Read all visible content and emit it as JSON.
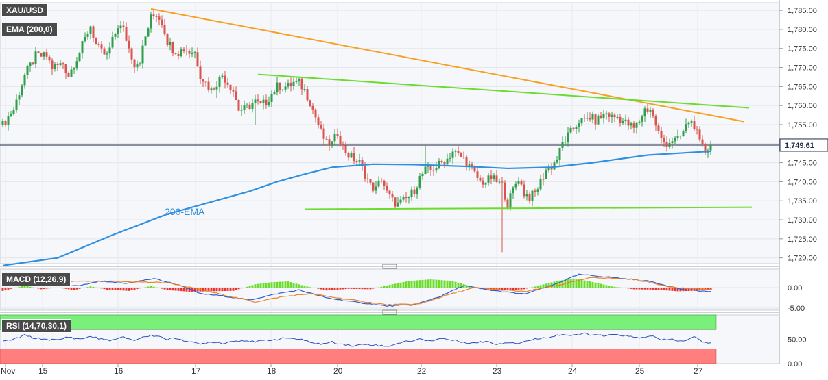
{
  "symbol": "XAU/USD",
  "ema_label": "EMA (200,0)",
  "ema_annotation": "200-EMA",
  "macd_label": "MACD (12,26,9)",
  "rsi_label": "RSI (14,70,30,1)",
  "colors": {
    "bull": "#2e9e4a",
    "bear": "#d9534f",
    "ema": "#2f8fe0",
    "trend_orange": "#f7a022",
    "trend_green": "#6cdc2c",
    "rsi_over": "#78f07a",
    "rsi_under": "#ff7f7f",
    "macd_line": "#2a5bd7",
    "signal_line": "#f0821e"
  },
  "chart_data": [
    {
      "type": "candlestick",
      "title": "XAU/USD",
      "ylim": [
        1718.5,
        1787
      ],
      "y_ticks": [
        "1,720.00",
        "1,725.00",
        "1,730.00",
        "1,735.00",
        "1,740.00",
        "1,745.00",
        "1,750.00",
        "1,755.00",
        "1,760.00",
        "1,765.00",
        "1,770.00",
        "1,775.00",
        "1,780.00",
        "1,785.00"
      ],
      "x_ticks": [
        "Nov",
        "15",
        "16",
        "17",
        "18",
        "20",
        "22",
        "23",
        "24",
        "25",
        "27"
      ],
      "last_price": "1,749.61",
      "anchors": [
        [
          0,
          1755
        ],
        [
          4,
          1759
        ],
        [
          8,
          1768
        ],
        [
          12,
          1773
        ],
        [
          16,
          1773
        ],
        [
          18,
          1770
        ],
        [
          22,
          1771
        ],
        [
          24,
          1768
        ],
        [
          28,
          1774
        ],
        [
          32,
          1781
        ],
        [
          34,
          1776
        ],
        [
          36,
          1774
        ],
        [
          38,
          1773
        ],
        [
          40,
          1777
        ],
        [
          42,
          1781
        ],
        [
          44,
          1780
        ],
        [
          46,
          1775
        ],
        [
          48,
          1771
        ],
        [
          50,
          1772
        ],
        [
          52,
          1778
        ],
        [
          54,
          1783
        ],
        [
          56,
          1784
        ],
        [
          58,
          1782
        ],
        [
          60,
          1777
        ],
        [
          62,
          1775
        ],
        [
          64,
          1774
        ],
        [
          66,
          1775
        ],
        [
          68,
          1774
        ],
        [
          70,
          1774
        ],
        [
          72,
          1768
        ],
        [
          74,
          1766
        ],
        [
          76,
          1764
        ],
        [
          78,
          1766
        ],
        [
          80,
          1768
        ],
        [
          82,
          1766
        ],
        [
          84,
          1764
        ],
        [
          86,
          1759
        ],
        [
          88,
          1759
        ],
        [
          90,
          1760
        ],
        [
          92,
          1761
        ],
        [
          94,
          1760
        ],
        [
          96,
          1761
        ],
        [
          98,
          1763
        ],
        [
          100,
          1765
        ],
        [
          102,
          1765
        ],
        [
          104,
          1765
        ],
        [
          106,
          1766
        ],
        [
          108,
          1766
        ],
        [
          110,
          1764
        ],
        [
          112,
          1761
        ],
        [
          114,
          1757
        ],
        [
          116,
          1753
        ],
        [
          118,
          1750
        ],
        [
          120,
          1750
        ],
        [
          122,
          1753
        ],
        [
          124,
          1749
        ],
        [
          126,
          1747
        ],
        [
          128,
          1746
        ],
        [
          130,
          1745
        ],
        [
          132,
          1742
        ],
        [
          134,
          1739
        ],
        [
          136,
          1738
        ],
        [
          138,
          1741
        ],
        [
          140,
          1737
        ],
        [
          142,
          1735
        ],
        [
          144,
          1734
        ],
        [
          146,
          1735
        ],
        [
          148,
          1736
        ],
        [
          150,
          1738
        ],
        [
          152,
          1741
        ],
        [
          154,
          1743
        ],
        [
          156,
          1743
        ],
        [
          158,
          1744
        ],
        [
          160,
          1745
        ],
        [
          162,
          1746
        ],
        [
          164,
          1748
        ],
        [
          166,
          1747
        ],
        [
          168,
          1746
        ],
        [
          170,
          1744
        ],
        [
          172,
          1742
        ],
        [
          174,
          1740
        ],
        [
          176,
          1740
        ],
        [
          178,
          1741
        ],
        [
          180,
          1740
        ],
        [
          182,
          1739
        ],
        [
          184,
          1734
        ],
        [
          186,
          1738
        ],
        [
          188,
          1741
        ],
        [
          190,
          1737
        ],
        [
          192,
          1736
        ],
        [
          194,
          1737
        ],
        [
          196,
          1740
        ],
        [
          198,
          1743
        ],
        [
          200,
          1744
        ],
        [
          202,
          1746
        ],
        [
          204,
          1750
        ],
        [
          206,
          1752
        ],
        [
          208,
          1754
        ],
        [
          210,
          1756
        ],
        [
          212,
          1756
        ],
        [
          214,
          1757
        ],
        [
          216,
          1756
        ],
        [
          218,
          1757
        ],
        [
          220,
          1758
        ],
        [
          222,
          1757
        ],
        [
          224,
          1757
        ],
        [
          226,
          1756
        ],
        [
          228,
          1755
        ],
        [
          230,
          1754
        ],
        [
          232,
          1756
        ],
        [
          234,
          1759
        ],
        [
          236,
          1759
        ],
        [
          238,
          1755
        ],
        [
          240,
          1751
        ],
        [
          242,
          1750
        ],
        [
          244,
          1751
        ],
        [
          246,
          1751
        ],
        [
          248,
          1753
        ],
        [
          250,
          1756
        ],
        [
          252,
          1755
        ],
        [
          254,
          1750
        ],
        [
          256,
          1748
        ],
        [
          258,
          1750
        ]
      ],
      "spikes": [
        [
          182,
          1721.5
        ],
        [
          154,
          1749.5
        ],
        [
          78,
          1762
        ],
        [
          92,
          1755
        ]
      ],
      "ema": [
        [
          0,
          1718
        ],
        [
          20,
          1720
        ],
        [
          40,
          1726
        ],
        [
          60,
          1731.5
        ],
        [
          80,
          1735.5
        ],
        [
          90,
          1737.5
        ],
        [
          100,
          1740
        ],
        [
          110,
          1742
        ],
        [
          120,
          1743.8
        ],
        [
          135,
          1744.6
        ],
        [
          150,
          1744.5
        ],
        [
          170,
          1744
        ],
        [
          184,
          1743.5
        ],
        [
          200,
          1743.8
        ],
        [
          215,
          1745
        ],
        [
          235,
          1747
        ],
        [
          258,
          1748
        ]
      ],
      "trendlines": [
        {
          "color": "orange",
          "from": [
            54,
            1785.4
          ],
          "to": [
            270,
            1755.8
          ]
        },
        {
          "color": "green",
          "from": [
            93,
            1768.2
          ],
          "to": [
            272,
            1759.4
          ]
        },
        {
          "color": "green",
          "from": [
            110,
            1732.8
          ],
          "to": [
            273,
            1733.3
          ]
        }
      ]
    },
    {
      "type": "macd",
      "title": "MACD (12,26,9)",
      "y_ticks": [
        "0.00",
        "-5.00"
      ],
      "ylim": [
        -5.5,
        4.5
      ],
      "macd": [
        [
          0,
          1
        ],
        [
          10,
          1.5
        ],
        [
          20,
          0.6
        ],
        [
          28,
          0.4
        ],
        [
          35,
          1.5
        ],
        [
          45,
          1
        ],
        [
          55,
          2.2
        ],
        [
          65,
          0.5
        ],
        [
          72,
          -1.5
        ],
        [
          80,
          -2
        ],
        [
          90,
          -3
        ],
        [
          100,
          -1.5
        ],
        [
          108,
          -0.6
        ],
        [
          118,
          -2.5
        ],
        [
          128,
          -3.5
        ],
        [
          140,
          -4.5
        ],
        [
          150,
          -4.2
        ],
        [
          160,
          -2
        ],
        [
          168,
          0.5
        ],
        [
          176,
          -0.5
        ],
        [
          190,
          -1.6
        ],
        [
          200,
          0.5
        ],
        [
          210,
          3.2
        ],
        [
          222,
          2.5
        ],
        [
          236,
          1.5
        ],
        [
          248,
          -0.5
        ],
        [
          258,
          -1
        ]
      ],
      "signal": [
        [
          0,
          1
        ],
        [
          20,
          1.5
        ],
        [
          40,
          1.5
        ],
        [
          60,
          1.2
        ],
        [
          72,
          -0.5
        ],
        [
          82,
          -2
        ],
        [
          92,
          -3.5
        ],
        [
          102,
          -2.2
        ],
        [
          112,
          -1.5
        ],
        [
          125,
          -2.8
        ],
        [
          140,
          -4.2
        ],
        [
          152,
          -4
        ],
        [
          162,
          -1.8
        ],
        [
          172,
          0
        ],
        [
          190,
          -1
        ],
        [
          202,
          0.5
        ],
        [
          215,
          2.5
        ],
        [
          230,
          2
        ],
        [
          245,
          0
        ],
        [
          258,
          -0.5
        ]
      ],
      "histogram": [
        [
          0,
          -0.8
        ],
        [
          8,
          0.5
        ],
        [
          14,
          -0.4
        ],
        [
          20,
          0
        ],
        [
          26,
          -0.6
        ],
        [
          32,
          0.3
        ],
        [
          38,
          -0.5
        ],
        [
          46,
          -0.8
        ],
        [
          54,
          0.4
        ],
        [
          60,
          -0.6
        ],
        [
          68,
          -1
        ],
        [
          76,
          -0.9
        ],
        [
          84,
          -0.8
        ],
        [
          92,
          0.8
        ],
        [
          98,
          1.3
        ],
        [
          104,
          1.5
        ],
        [
          110,
          0.4
        ],
        [
          118,
          -0.7
        ],
        [
          126,
          -0.3
        ],
        [
          134,
          -0.4
        ],
        [
          142,
          0.8
        ],
        [
          148,
          1.6
        ],
        [
          156,
          2
        ],
        [
          164,
          1.6
        ],
        [
          170,
          0.4
        ],
        [
          176,
          -0.4
        ],
        [
          184,
          -0.6
        ],
        [
          190,
          -0.4
        ],
        [
          196,
          0.6
        ],
        [
          202,
          1.6
        ],
        [
          208,
          2.2
        ],
        [
          214,
          1.5
        ],
        [
          222,
          0.3
        ],
        [
          230,
          -0.4
        ],
        [
          238,
          -0.5
        ],
        [
          246,
          -0.9
        ],
        [
          252,
          -0.8
        ],
        [
          258,
          -0.5
        ]
      ]
    },
    {
      "type": "rsi",
      "title": "RSI (14,70,30,1)",
      "y_ticks": [
        "50.00",
        "0.00"
      ],
      "ylim": [
        0,
        100
      ],
      "overbought": 70,
      "oversold": 30,
      "rsi": [
        [
          0,
          45
        ],
        [
          4,
          50
        ],
        [
          8,
          58
        ],
        [
          12,
          52
        ],
        [
          16,
          50
        ],
        [
          20,
          48
        ],
        [
          24,
          55
        ],
        [
          28,
          50
        ],
        [
          32,
          56
        ],
        [
          36,
          50
        ],
        [
          40,
          48
        ],
        [
          44,
          54
        ],
        [
          48,
          48
        ],
        [
          52,
          56
        ],
        [
          56,
          58
        ],
        [
          60,
          50
        ],
        [
          64,
          52
        ],
        [
          68,
          44
        ],
        [
          72,
          40
        ],
        [
          76,
          45
        ],
        [
          80,
          42
        ],
        [
          84,
          46
        ],
        [
          88,
          48
        ],
        [
          92,
          44
        ],
        [
          96,
          48
        ],
        [
          100,
          50
        ],
        [
          104,
          53
        ],
        [
          108,
          50
        ],
        [
          112,
          44
        ],
        [
          116,
          40
        ],
        [
          120,
          44
        ],
        [
          124,
          40
        ],
        [
          128,
          36
        ],
        [
          132,
          40
        ],
        [
          136,
          38
        ],
        [
          140,
          35
        ],
        [
          144,
          42
        ],
        [
          148,
          46
        ],
        [
          152,
          50
        ],
        [
          156,
          47
        ],
        [
          160,
          52
        ],
        [
          164,
          48
        ],
        [
          168,
          44
        ],
        [
          172,
          42
        ],
        [
          176,
          46
        ],
        [
          180,
          40
        ],
        [
          184,
          44
        ],
        [
          188,
          42
        ],
        [
          192,
          48
        ],
        [
          196,
          52
        ],
        [
          200,
          56
        ],
        [
          204,
          60
        ],
        [
          208,
          57
        ],
        [
          212,
          62
        ],
        [
          216,
          58
        ],
        [
          220,
          57
        ],
        [
          224,
          60
        ],
        [
          228,
          56
        ],
        [
          232,
          52
        ],
        [
          236,
          58
        ],
        [
          240,
          48
        ],
        [
          244,
          50
        ],
        [
          248,
          45
        ],
        [
          252,
          55
        ],
        [
          256,
          42
        ],
        [
          258,
          44
        ]
      ]
    }
  ]
}
